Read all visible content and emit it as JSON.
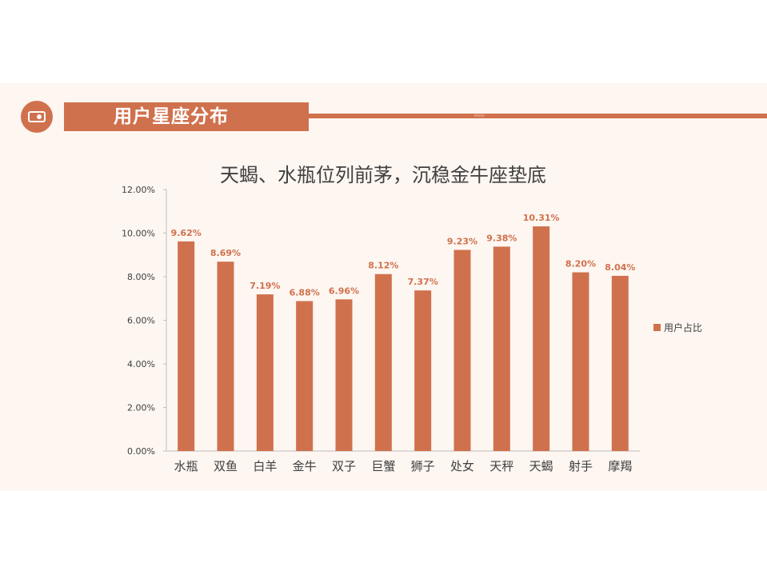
{
  "header": {
    "title": "用户星座分布",
    "icon": "camera-icon",
    "accent_color": "#d0714d"
  },
  "chart_data": {
    "type": "bar",
    "title": "天蝎、水瓶位列前茅，沉稳金牛座垫底",
    "categories": [
      "水瓶",
      "双鱼",
      "白羊",
      "金牛",
      "双子",
      "巨蟹",
      "狮子",
      "处女",
      "天秤",
      "天蝎",
      "射手",
      "摩羯"
    ],
    "series": [
      {
        "name": "用户占比",
        "values": [
          9.62,
          8.69,
          7.19,
          6.88,
          6.96,
          8.12,
          7.37,
          9.23,
          9.38,
          10.31,
          8.2,
          8.04
        ],
        "labels": [
          "9.62%",
          "8.69%",
          "7.19%",
          "6.88%",
          "6.96%",
          "8.12%",
          "7.37%",
          "9.23%",
          "9.38%",
          "10.31%",
          "8.20%",
          "8.04%"
        ],
        "color": "#d0714d"
      }
    ],
    "ylim": [
      0,
      12
    ],
    "yticks": [
      "0.00%",
      "2.00%",
      "4.00%",
      "6.00%",
      "8.00%",
      "10.00%",
      "12.00%"
    ],
    "grid": false,
    "legend": "right"
  }
}
